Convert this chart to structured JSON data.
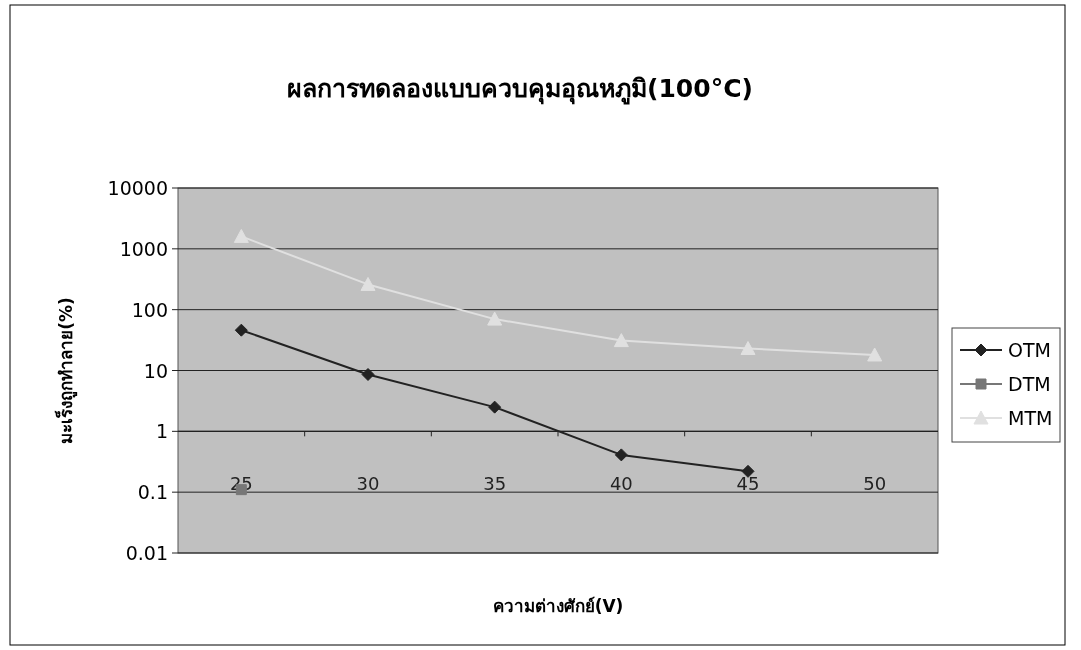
{
  "chart_data": {
    "type": "line",
    "title": "ผลการทดลองแบบควบคุมอุณหภูมิ(100°C)",
    "xlabel": "ความต่างศักย์(V)",
    "ylabel": "มะเร็งถูกทำลาย(%)",
    "categories": [
      "25",
      "30",
      "35",
      "40",
      "45",
      "50"
    ],
    "series": [
      {
        "name": "OTM",
        "color": "#222222",
        "marker": "diamond",
        "values": [
          46,
          8.6,
          2.5,
          0.41,
          0.22,
          null
        ]
      },
      {
        "name": "DTM",
        "color": "#777777",
        "marker": "square",
        "values": [
          0.11,
          null,
          null,
          null,
          null,
          null
        ]
      },
      {
        "name": "MTM",
        "color": "#e0e0e0",
        "marker": "triangle",
        "values": [
          1600,
          260,
          70,
          31,
          23,
          18
        ]
      }
    ],
    "log": "y",
    "ylim": [
      0.01,
      10000
    ],
    "yticks": [
      0.01,
      0.1,
      1,
      10,
      100,
      1000,
      10000
    ],
    "grid": "y",
    "legend": "right"
  }
}
